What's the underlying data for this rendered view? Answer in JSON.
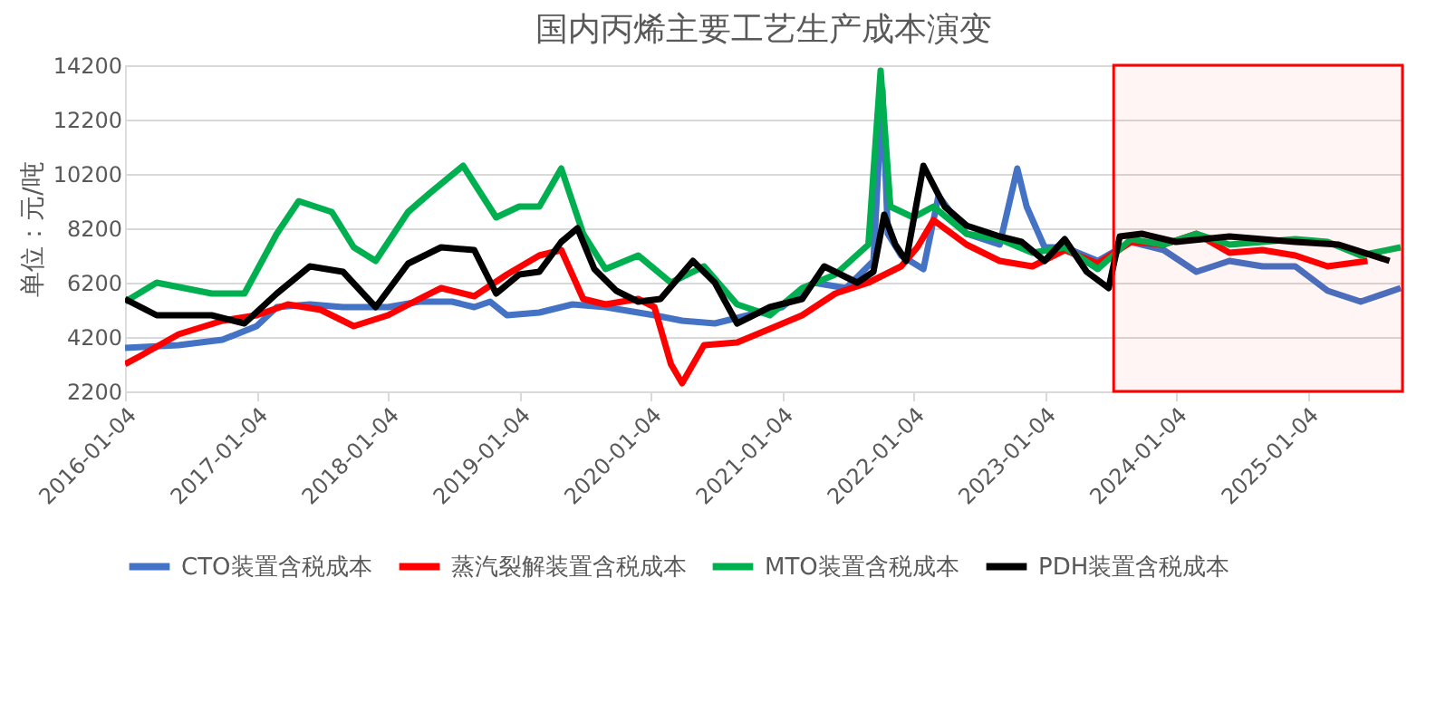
{
  "chart_data": {
    "type": "line",
    "title": "国内丙烯主要工艺生产成本演变",
    "ylabel": "单位：元/吨",
    "xlim": [
      "2016-01-04",
      "2025-09-25"
    ],
    "xticks": [
      "2016-01-04",
      "2017-01-04",
      "2018-01-04",
      "2019-01-04",
      "2020-01-04",
      "2021-01-04",
      "2022-01-04",
      "2023-01-04",
      "2024-01-04",
      "2025-01-04"
    ],
    "ylim": [
      2200,
      14200
    ],
    "yticks": [
      2200,
      4200,
      6200,
      8200,
      10200,
      12200,
      14200
    ],
    "grid": "y",
    "legend": "bottom",
    "line_style": "solid",
    "marker": "none",
    "bands": [
      {
        "axis": "x",
        "from": "2023-07-15",
        "to": "2025-09-25",
        "color": "#ff0000"
      }
    ],
    "series": [
      {
        "name": "CTO装置含税成本",
        "color": "#4472c4",
        "x": [
          "2016-01-04",
          "2016-06-01",
          "2016-10-01",
          "2017-01-04",
          "2017-03-01",
          "2017-06-01",
          "2017-09-01",
          "2018-01-04",
          "2018-04-01",
          "2018-07-01",
          "2018-09-01",
          "2018-10-15",
          "2018-12-01",
          "2019-03-01",
          "2019-06-01",
          "2019-09-01",
          "2019-12-01",
          "2020-01-15",
          "2020-04-01",
          "2020-07-01",
          "2020-10-01",
          "2021-01-04",
          "2021-04-01",
          "2021-07-01",
          "2021-09-15",
          "2021-10-10",
          "2021-10-25",
          "2021-12-01",
          "2022-02-01",
          "2022-03-15",
          "2022-06-01",
          "2022-09-01",
          "2022-10-20",
          "2022-11-15",
          "2023-01-04",
          "2023-03-01",
          "2023-06-01",
          "2023-09-01",
          "2023-12-01",
          "2024-03-01",
          "2024-06-01",
          "2024-09-01",
          "2024-12-01",
          "2025-03-01",
          "2025-06-01",
          "2025-09-20"
        ],
        "values": [
          3800,
          3900,
          4100,
          4600,
          5300,
          5400,
          5300,
          5300,
          5500,
          5500,
          5300,
          5500,
          5000,
          5100,
          5400,
          5300,
          5100,
          5000,
          4800,
          4700,
          5000,
          5300,
          6200,
          6000,
          7000,
          13300,
          8000,
          7200,
          6700,
          9400,
          8000,
          7600,
          10400,
          9000,
          7500,
          7500,
          7000,
          7700,
          7400,
          6600,
          7000,
          6800,
          6800,
          5900,
          5500,
          6000
        ]
      },
      {
        "name": "蒸汽裂解装置含税成本",
        "color": "#ff0000",
        "x": [
          "2016-01-04",
          "2016-02-15",
          "2016-06-01",
          "2016-10-01",
          "2017-01-04",
          "2017-04-01",
          "2017-07-01",
          "2017-10-01",
          "2018-01-04",
          "2018-04-01",
          "2018-06-01",
          "2018-09-01",
          "2018-12-01",
          "2019-03-01",
          "2019-05-01",
          "2019-07-01",
          "2019-09-01",
          "2019-12-01",
          "2020-01-15",
          "2020-03-01",
          "2020-04-01",
          "2020-06-01",
          "2020-09-01",
          "2020-12-01",
          "2021-03-01",
          "2021-06-01",
          "2021-09-01",
          "2021-12-01",
          "2022-01-15",
          "2022-03-01",
          "2022-06-01",
          "2022-09-01",
          "2022-12-01",
          "2023-03-01",
          "2023-06-01",
          "2023-09-01",
          "2023-12-01",
          "2024-03-01",
          "2024-06-01",
          "2024-09-01",
          "2024-12-01",
          "2025-03-01",
          "2025-06-20"
        ],
        "values": [
          3200,
          3500,
          4300,
          4800,
          5000,
          5400,
          5200,
          4600,
          5000,
          5600,
          6000,
          5700,
          6500,
          7200,
          7400,
          5600,
          5400,
          5600,
          5300,
          3200,
          2500,
          3900,
          4000,
          4500,
          5000,
          5800,
          6200,
          6800,
          7500,
          8500,
          7600,
          7000,
          6800,
          7400,
          6900,
          7700,
          7600,
          8000,
          7300,
          7400,
          7200,
          6800,
          7000
        ]
      },
      {
        "name": "MTO装置含税成本",
        "color": "#00b050",
        "x": [
          "2016-01-04",
          "2016-04-01",
          "2016-09-01",
          "2016-12-01",
          "2017-03-01",
          "2017-05-01",
          "2017-08-01",
          "2017-10-01",
          "2017-12-01",
          "2018-03-01",
          "2018-05-01",
          "2018-08-01",
          "2018-11-01",
          "2019-01-04",
          "2019-03-01",
          "2019-05-01",
          "2019-07-01",
          "2019-09-01",
          "2019-12-01",
          "2020-03-01",
          "2020-06-01",
          "2020-09-01",
          "2020-12-01",
          "2021-03-01",
          "2021-06-01",
          "2021-09-01",
          "2021-10-05",
          "2021-11-01",
          "2022-01-04",
          "2022-03-01",
          "2022-06-01",
          "2022-09-01",
          "2022-12-01",
          "2023-03-01",
          "2023-06-01",
          "2023-09-01",
          "2023-12-01",
          "2024-03-01",
          "2024-06-01",
          "2024-09-01",
          "2024-12-01",
          "2025-03-01",
          "2025-06-01",
          "2025-09-20"
        ],
        "values": [
          5500,
          6200,
          5800,
          5800,
          8000,
          9200,
          8800,
          7500,
          7000,
          8800,
          9500,
          10500,
          8600,
          9000,
          9000,
          10400,
          8000,
          6700,
          7200,
          6200,
          6800,
          5400,
          5000,
          6000,
          6500,
          7600,
          14000,
          9000,
          8600,
          9000,
          8000,
          7800,
          7300,
          7500,
          6700,
          7800,
          7600,
          8000,
          7600,
          7700,
          7800,
          7700,
          7200,
          7500
        ]
      },
      {
        "name": "PDH装置含税成本",
        "color": "#000000",
        "x": [
          "2016-01-04",
          "2016-04-01",
          "2016-09-01",
          "2016-12-01",
          "2017-03-01",
          "2017-06-01",
          "2017-09-01",
          "2017-12-01",
          "2018-03-01",
          "2018-06-01",
          "2018-09-01",
          "2018-11-01",
          "2019-01-04",
          "2019-03-01",
          "2019-05-01",
          "2019-06-15",
          "2019-08-01",
          "2019-10-01",
          "2019-12-01",
          "2020-02-01",
          "2020-05-01",
          "2020-07-01",
          "2020-09-01",
          "2020-12-01",
          "2021-03-01",
          "2021-05-01",
          "2021-08-01",
          "2021-09-15",
          "2021-10-15",
          "2021-11-15",
          "2021-12-15",
          "2022-02-01",
          "2022-04-01",
          "2022-06-01",
          "2022-09-01",
          "2022-11-01",
          "2023-01-04",
          "2023-03-01",
          "2023-05-01",
          "2023-07-01",
          "2023-08-01",
          "2023-10-01",
          "2024-01-04",
          "2024-06-01",
          "2024-12-01",
          "2025-04-01",
          "2025-08-20"
        ],
        "values": [
          5600,
          5000,
          5000,
          4700,
          5800,
          6800,
          6600,
          5300,
          6900,
          7500,
          7400,
          5800,
          6500,
          6600,
          7700,
          8200,
          6700,
          5900,
          5500,
          5600,
          7000,
          6200,
          4700,
          5300,
          5600,
          6800,
          6200,
          6600,
          8700,
          7600,
          7000,
          10500,
          9000,
          8300,
          7900,
          7700,
          7000,
          7800,
          6600,
          6000,
          7900,
          8000,
          7700,
          7900,
          7700,
          7600,
          7000
        ]
      }
    ]
  }
}
